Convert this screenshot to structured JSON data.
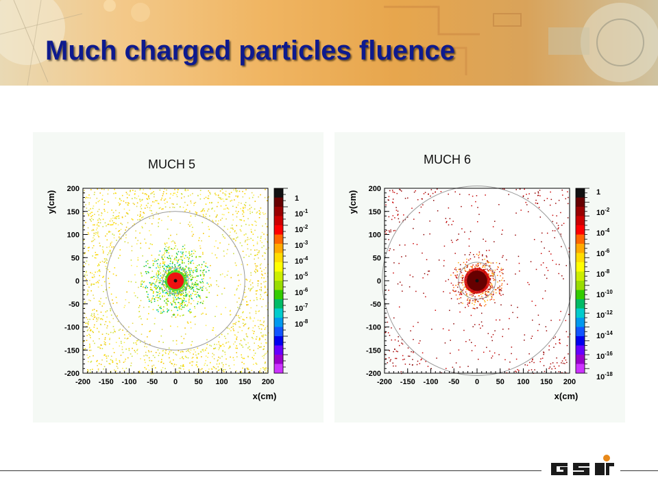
{
  "page": {
    "title": "Much charged particles fluence",
    "logo_text": "GSI"
  },
  "colors": {
    "title": "#0e1a8e",
    "logo": "#1a1a1a",
    "logo_dot": "#e8891a",
    "palette": [
      "#cc33ff",
      "#9900cc",
      "#6600ff",
      "#0000ee",
      "#1155ff",
      "#0099ee",
      "#00cccc",
      "#00bb66",
      "#33cc00",
      "#99dd00",
      "#ccee00",
      "#ffff00",
      "#ffdd00",
      "#ffaa00",
      "#ff6600",
      "#ff0000",
      "#cc0000",
      "#990000",
      "#660000",
      "#111111"
    ]
  },
  "chart_data": [
    {
      "type": "heatmap",
      "title": "MUCH 5",
      "xlabel": "x(cm)",
      "ylabel": "y(cm)",
      "xlim": [
        -200,
        200
      ],
      "ylim": [
        -200,
        200
      ],
      "x_ticks": [
        -200,
        -150,
        -100,
        -50,
        0,
        50,
        100,
        150,
        200
      ],
      "y_ticks": [
        200,
        150,
        100,
        50,
        0,
        -50,
        -100,
        -150,
        -200
      ],
      "colorbar_scale": "log",
      "colorbar_labels": [
        "1",
        "10-1",
        "10-2",
        "10-3",
        "10-4",
        "10-5",
        "10-6",
        "10-7",
        "10-8"
      ],
      "circle_radii_cm": [
        150,
        28
      ],
      "inner_hotspot_radius_cm": 18
    },
    {
      "type": "heatmap",
      "title": "MUCH 6",
      "xlabel": "x(cm)",
      "ylabel": "y(cm)",
      "xlim": [
        -200,
        200
      ],
      "ylim": [
        -200,
        200
      ],
      "x_ticks": [
        -200,
        -150,
        -100,
        -50,
        0,
        50,
        100,
        150,
        200
      ],
      "y_ticks": [
        200,
        150,
        100,
        50,
        0,
        -50,
        -100,
        -150,
        -200
      ],
      "colorbar_scale": "log",
      "colorbar_labels": [
        "1",
        "10-2",
        "10-4",
        "10-6",
        "10-8",
        "10-10",
        "10-12",
        "10-14",
        "10-16",
        "10-18"
      ],
      "circle_radii_cm": [
        205,
        40
      ],
      "inner_hotspot_radius_cm": 22
    }
  ]
}
